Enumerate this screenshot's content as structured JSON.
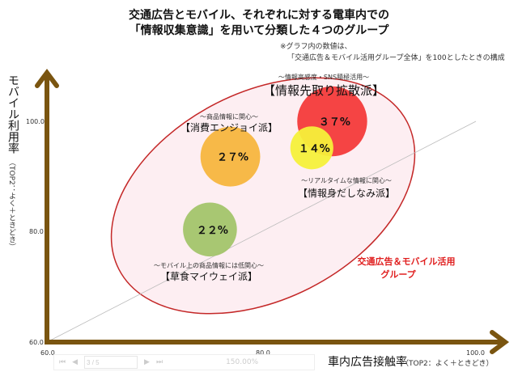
{
  "title_line1": "交通広告とモバイル、それぞれに対する電車内での",
  "title_line2": "「情報収集意識」を用いて分類した４つのグループ",
  "note_line1": "※グラフ内の数値は、",
  "note_line2": "「交通広告＆モバイル活用グループ全体」を100としたときの構成",
  "chart_data": {
    "type": "bubble",
    "xlabel": "車内広告接触率",
    "xlabel_note": "（TOP2：よく＋ときどき）",
    "ylabel": "モバイル利用率",
    "ylabel_note": "（TOP2：よく＋ときどき）",
    "xlim": [
      60,
      100
    ],
    "ylim": [
      60,
      100
    ],
    "x_ticks": [
      "60.0",
      "80.0",
      "100.0"
    ],
    "y_ticks": [
      "60.0",
      "80.0",
      "100.0"
    ],
    "diagonal_reference_line": true,
    "enclosing_group": {
      "label_line1": "交通広告＆モバイル活用",
      "label_line2": "グループ",
      "color": "#e03030",
      "fill": "#fdeef2"
    },
    "bubbles": [
      {
        "id": "red",
        "x": 86.6,
        "y": 100.0,
        "value": 37,
        "label": "３７%",
        "subtitle": "〜情報高感度・SNS積極活用〜",
        "name": "【情報先取り拡散派】",
        "color": "#f43a3a"
      },
      {
        "id": "orange",
        "x": 77.1,
        "y": 93.6,
        "value": 27,
        "label": "２７%",
        "subtitle": "〜商品情報に関心〜",
        "name": "【消費エンジョイ派】",
        "color": "#f7b53e"
      },
      {
        "id": "yellow",
        "x": 84.7,
        "y": 95.2,
        "value": 14,
        "label": "１４%",
        "subtitle": "〜リアルタイムな情報に関心〜",
        "name": "【情報身だしなみ派】",
        "color": "#f5f03a"
      },
      {
        "id": "green",
        "x": 75.2,
        "y": 80.4,
        "value": 22,
        "label": "２２%",
        "subtitle": "〜モバイル上の商品情報には低関心〜",
        "name": "【草食マイウェイ派】",
        "color": "#a3c46a"
      }
    ],
    "axis_color": "#7a5510"
  },
  "viewer_toolbar": {
    "page": "3 / 5",
    "zoom": "150.00%"
  }
}
